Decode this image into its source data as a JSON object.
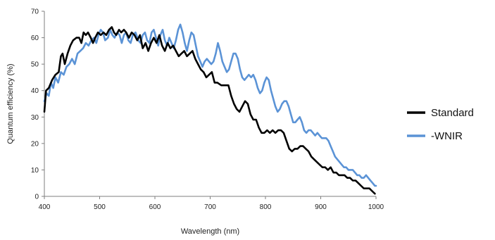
{
  "chart_data": {
    "type": "line",
    "title": "",
    "xlabel": "Wavelength (nm)",
    "ylabel": "Quantum efficiency (%)",
    "xlim": [
      400,
      1000
    ],
    "ylim": [
      0,
      70
    ],
    "x_ticks": [
      "400",
      "500",
      "600",
      "700",
      "800",
      "900",
      "1000"
    ],
    "y_ticks": [
      "0",
      "10",
      "20",
      "30",
      "40",
      "50",
      "60",
      "70"
    ],
    "grid": false,
    "legend_position": "right",
    "series": [
      {
        "name": "Standard",
        "color": "#000000",
        "points": [
          [
            400,
            32
          ],
          [
            403,
            40
          ],
          [
            408,
            41
          ],
          [
            414,
            44
          ],
          [
            420,
            46
          ],
          [
            426,
            47
          ],
          [
            430,
            53
          ],
          [
            433,
            54
          ],
          [
            437,
            50
          ],
          [
            442,
            54
          ],
          [
            447,
            57
          ],
          [
            452,
            59
          ],
          [
            458,
            60
          ],
          [
            463,
            60
          ],
          [
            467,
            58
          ],
          [
            471,
            62
          ],
          [
            475,
            61
          ],
          [
            479,
            62
          ],
          [
            484,
            60
          ],
          [
            488,
            58
          ],
          [
            492,
            60
          ],
          [
            497,
            62
          ],
          [
            502,
            61
          ],
          [
            507,
            62
          ],
          [
            512,
            61
          ],
          [
            517,
            63
          ],
          [
            522,
            64
          ],
          [
            526,
            62
          ],
          [
            530,
            61
          ],
          [
            535,
            63
          ],
          [
            539,
            62
          ],
          [
            544,
            63
          ],
          [
            548,
            62
          ],
          [
            553,
            60
          ],
          [
            558,
            62
          ],
          [
            563,
            61
          ],
          [
            568,
            59
          ],
          [
            573,
            61
          ],
          [
            578,
            56
          ],
          [
            583,
            58
          ],
          [
            588,
            55
          ],
          [
            593,
            58
          ],
          [
            598,
            60
          ],
          [
            603,
            58
          ],
          [
            608,
            61
          ],
          [
            613,
            57
          ],
          [
            618,
            55
          ],
          [
            623,
            58
          ],
          [
            628,
            56
          ],
          [
            633,
            57
          ],
          [
            638,
            55
          ],
          [
            643,
            53
          ],
          [
            648,
            54
          ],
          [
            653,
            55
          ],
          [
            658,
            53
          ],
          [
            663,
            54
          ],
          [
            668,
            55
          ],
          [
            673,
            52
          ],
          [
            678,
            50
          ],
          [
            683,
            48
          ],
          [
            688,
            47
          ],
          [
            693,
            45
          ],
          [
            698,
            46
          ],
          [
            703,
            47
          ],
          [
            708,
            43
          ],
          [
            713,
            43
          ],
          [
            720,
            42
          ],
          [
            728,
            42
          ],
          [
            733,
            42
          ],
          [
            738,
            38
          ],
          [
            743,
            35
          ],
          [
            748,
            33
          ],
          [
            753,
            32
          ],
          [
            758,
            34
          ],
          [
            763,
            36
          ],
          [
            768,
            35
          ],
          [
            773,
            31
          ],
          [
            778,
            29
          ],
          [
            783,
            29
          ],
          [
            788,
            26
          ],
          [
            793,
            24
          ],
          [
            798,
            24
          ],
          [
            803,
            25
          ],
          [
            808,
            24
          ],
          [
            813,
            25
          ],
          [
            818,
            24
          ],
          [
            823,
            25
          ],
          [
            828,
            25
          ],
          [
            833,
            24
          ],
          [
            838,
            21
          ],
          [
            843,
            18
          ],
          [
            848,
            17
          ],
          [
            853,
            18
          ],
          [
            858,
            18
          ],
          [
            863,
            19
          ],
          [
            868,
            19
          ],
          [
            873,
            18
          ],
          [
            878,
            17
          ],
          [
            883,
            15
          ],
          [
            888,
            14
          ],
          [
            893,
            13
          ],
          [
            898,
            12
          ],
          [
            903,
            11
          ],
          [
            908,
            11
          ],
          [
            913,
            10
          ],
          [
            918,
            11
          ],
          [
            923,
            9
          ],
          [
            928,
            9
          ],
          [
            933,
            8
          ],
          [
            938,
            8
          ],
          [
            943,
            8
          ],
          [
            948,
            7
          ],
          [
            953,
            7
          ],
          [
            958,
            6
          ],
          [
            963,
            6
          ],
          [
            968,
            5
          ],
          [
            973,
            4
          ],
          [
            978,
            3
          ],
          [
            983,
            3
          ],
          [
            988,
            3
          ],
          [
            993,
            2
          ],
          [
            998,
            1
          ]
        ]
      },
      {
        "name": "-WNIR",
        "color": "#5b93d6",
        "points": [
          [
            400,
            36
          ],
          [
            404,
            39
          ],
          [
            408,
            38
          ],
          [
            412,
            43
          ],
          [
            416,
            41
          ],
          [
            420,
            45
          ],
          [
            425,
            43
          ],
          [
            430,
            47
          ],
          [
            435,
            46
          ],
          [
            440,
            49
          ],
          [
            445,
            50
          ],
          [
            450,
            52
          ],
          [
            455,
            50
          ],
          [
            460,
            54
          ],
          [
            465,
            55
          ],
          [
            470,
            56
          ],
          [
            475,
            58
          ],
          [
            480,
            57
          ],
          [
            485,
            59
          ],
          [
            490,
            60
          ],
          [
            494,
            58
          ],
          [
            498,
            61
          ],
          [
            502,
            63
          ],
          [
            506,
            62
          ],
          [
            510,
            59
          ],
          [
            515,
            60
          ],
          [
            519,
            63
          ],
          [
            523,
            61
          ],
          [
            527,
            60
          ],
          [
            532,
            62
          ],
          [
            536,
            61
          ],
          [
            540,
            58
          ],
          [
            544,
            61
          ],
          [
            548,
            62
          ],
          [
            552,
            59
          ],
          [
            556,
            58
          ],
          [
            560,
            61
          ],
          [
            565,
            62
          ],
          [
            570,
            59
          ],
          [
            574,
            58
          ],
          [
            578,
            61
          ],
          [
            582,
            62
          ],
          [
            586,
            59
          ],
          [
            590,
            58
          ],
          [
            594,
            62
          ],
          [
            598,
            63
          ],
          [
            602,
            60
          ],
          [
            606,
            57
          ],
          [
            610,
            61
          ],
          [
            614,
            63
          ],
          [
            618,
            59
          ],
          [
            622,
            57
          ],
          [
            626,
            60
          ],
          [
            630,
            58
          ],
          [
            634,
            56
          ],
          [
            638,
            59
          ],
          [
            642,
            63
          ],
          [
            646,
            65
          ],
          [
            650,
            62
          ],
          [
            654,
            58
          ],
          [
            658,
            55
          ],
          [
            662,
            59
          ],
          [
            666,
            62
          ],
          [
            670,
            61
          ],
          [
            674,
            57
          ],
          [
            678,
            53
          ],
          [
            682,
            51
          ],
          [
            686,
            49
          ],
          [
            690,
            51
          ],
          [
            694,
            52
          ],
          [
            698,
            51
          ],
          [
            702,
            50
          ],
          [
            706,
            51
          ],
          [
            710,
            54
          ],
          [
            714,
            58
          ],
          [
            718,
            55
          ],
          [
            722,
            51
          ],
          [
            726,
            49
          ],
          [
            730,
            47
          ],
          [
            734,
            48
          ],
          [
            738,
            51
          ],
          [
            742,
            54
          ],
          [
            746,
            54
          ],
          [
            750,
            52
          ],
          [
            754,
            48
          ],
          [
            758,
            45
          ],
          [
            762,
            44
          ],
          [
            766,
            45
          ],
          [
            770,
            46
          ],
          [
            774,
            45
          ],
          [
            778,
            46
          ],
          [
            782,
            44
          ],
          [
            786,
            41
          ],
          [
            790,
            39
          ],
          [
            794,
            40
          ],
          [
            798,
            43
          ],
          [
            802,
            45
          ],
          [
            806,
            44
          ],
          [
            810,
            40
          ],
          [
            814,
            37
          ],
          [
            818,
            34
          ],
          [
            822,
            32
          ],
          [
            826,
            33
          ],
          [
            830,
            35
          ],
          [
            834,
            36
          ],
          [
            838,
            36
          ],
          [
            842,
            34
          ],
          [
            846,
            31
          ],
          [
            850,
            28
          ],
          [
            854,
            28
          ],
          [
            858,
            29
          ],
          [
            862,
            30
          ],
          [
            866,
            28
          ],
          [
            870,
            25
          ],
          [
            874,
            24
          ],
          [
            878,
            25
          ],
          [
            882,
            25
          ],
          [
            886,
            24
          ],
          [
            890,
            23
          ],
          [
            894,
            24
          ],
          [
            898,
            23
          ],
          [
            902,
            22
          ],
          [
            906,
            22
          ],
          [
            910,
            22
          ],
          [
            914,
            21
          ],
          [
            918,
            19
          ],
          [
            922,
            17
          ],
          [
            926,
            15
          ],
          [
            930,
            14
          ],
          [
            934,
            13
          ],
          [
            938,
            12
          ],
          [
            942,
            11
          ],
          [
            946,
            11
          ],
          [
            950,
            10
          ],
          [
            954,
            10
          ],
          [
            958,
            10
          ],
          [
            962,
            9
          ],
          [
            966,
            8
          ],
          [
            970,
            8
          ],
          [
            974,
            7
          ],
          [
            978,
            7
          ],
          [
            982,
            8
          ],
          [
            986,
            7
          ],
          [
            990,
            6
          ],
          [
            994,
            5
          ],
          [
            998,
            4
          ],
          [
            1000,
            4
          ]
        ]
      }
    ]
  }
}
